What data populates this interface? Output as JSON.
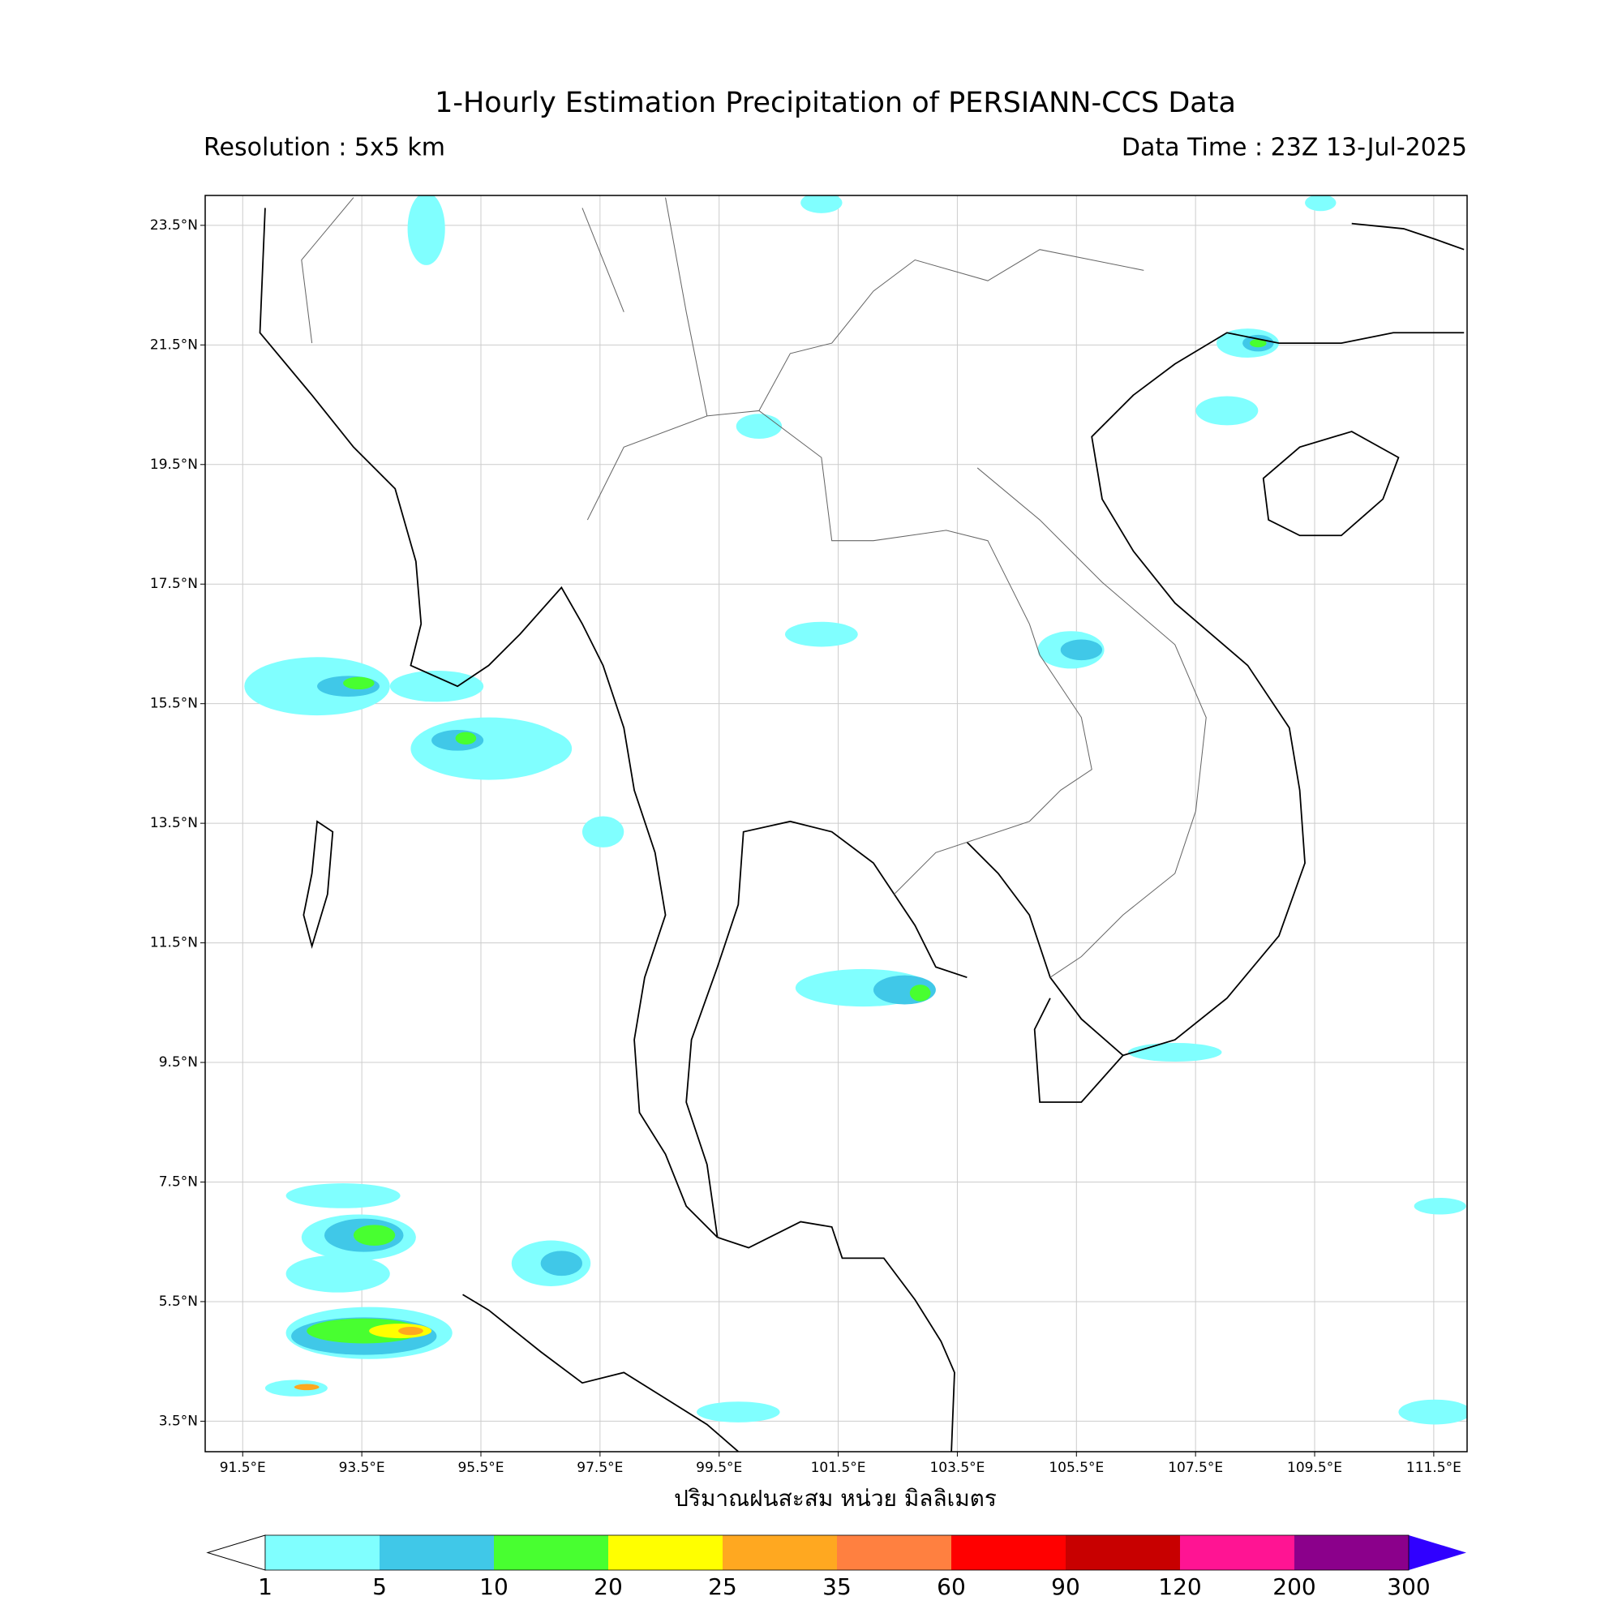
{
  "header": {
    "title": "1-Hourly Estimation Precipitation of PERSIANN-CCS Data",
    "resolution": "Resolution : 5x5 km",
    "data_time": "Data Time : 23Z 13-Jul-2025"
  },
  "map": {
    "xlim": [
      90.87,
      112.06
    ],
    "ylim": [
      2.99,
      24.0
    ],
    "xticks": [
      {
        "value": 91.5,
        "label": "91.5°E"
      },
      {
        "value": 93.5,
        "label": "93.5°E"
      },
      {
        "value": 95.5,
        "label": "95.5°E"
      },
      {
        "value": 97.5,
        "label": "97.5°E"
      },
      {
        "value": 99.5,
        "label": "99.5°E"
      },
      {
        "value": 101.5,
        "label": "101.5°E"
      },
      {
        "value": 103.5,
        "label": "103.5°E"
      },
      {
        "value": 105.5,
        "label": "105.5°E"
      },
      {
        "value": 107.5,
        "label": "107.5°E"
      },
      {
        "value": 109.5,
        "label": "109.5°E"
      },
      {
        "value": 111.5,
        "label": "111.5°E"
      }
    ],
    "yticks": [
      {
        "value": 3.5,
        "label": "3.5°N"
      },
      {
        "value": 5.5,
        "label": "5.5°N"
      },
      {
        "value": 7.5,
        "label": "7.5°N"
      },
      {
        "value": 9.5,
        "label": "9.5°N"
      },
      {
        "value": 11.5,
        "label": "11.5°N"
      },
      {
        "value": 13.5,
        "label": "13.5°N"
      },
      {
        "value": 15.5,
        "label": "15.5°N"
      },
      {
        "value": 17.5,
        "label": "17.5°N"
      },
      {
        "value": 19.5,
        "label": "19.5°N"
      },
      {
        "value": 21.5,
        "label": "21.5°N"
      },
      {
        "value": 23.5,
        "label": "23.5°N"
      }
    ],
    "grid": true,
    "xlabel": "ปริมาณฝนสะสม หน่วย มิลลิเมตร"
  },
  "colorbar": {
    "bounds": [
      1,
      5,
      10,
      20,
      25,
      35,
      60,
      90,
      120,
      200,
      300
    ],
    "colors": [
      "#80ffff",
      "#40c8e8",
      "#48ff30",
      "#ffff00",
      "#ffa820",
      "#ff8040",
      "#ff0000",
      "#c80000",
      "#ff1493",
      "#8b008b"
    ],
    "under_color": "#ffffff",
    "over_color": "#3000ff"
  }
}
